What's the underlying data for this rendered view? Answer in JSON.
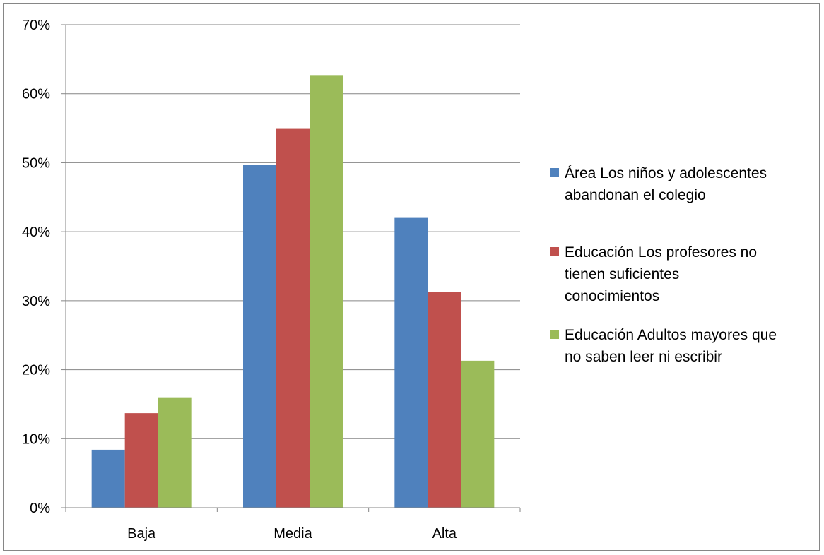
{
  "chart_data": {
    "type": "bar",
    "categories": [
      "Baja",
      "Media",
      "Alta"
    ],
    "series": [
      {
        "name": "Área Los niños y adolescentes abandonan el colegio",
        "color": "#4f81bd",
        "values": [
          8.4,
          49.7,
          42.0
        ]
      },
      {
        "name": "Educación Los profesores no tienen suficientes conocimientos",
        "color": "#c0504d",
        "values": [
          13.7,
          55.0,
          31.3
        ]
      },
      {
        "name": "Educación Adultos mayores que no saben leer ni escribir",
        "color": "#9bbb59",
        "values": [
          16.0,
          62.7,
          21.3
        ]
      }
    ],
    "legend_lines": [
      [
        "Área Los niños y adolescentes",
        "abandonan el colegio"
      ],
      [
        "Educación Los profesores no",
        "tienen suficientes",
        "conocimientos"
      ],
      [
        "Educación Adultos mayores que",
        "no saben leer ni escribir"
      ]
    ],
    "yticks": [
      "0%",
      "10%",
      "20%",
      "30%",
      "40%",
      "50%",
      "60%",
      "70%"
    ],
    "ylim": [
      0,
      70
    ],
    "grid": true,
    "legend_position": "right",
    "title": "",
    "xlabel": "",
    "ylabel": ""
  }
}
